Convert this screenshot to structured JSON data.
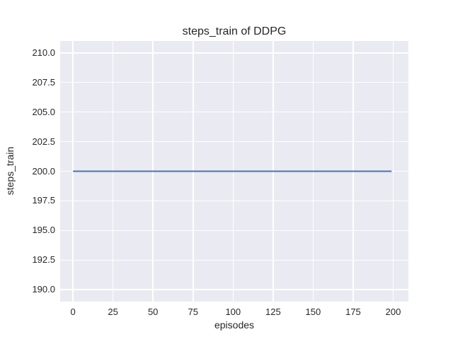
{
  "chart_data": {
    "type": "line",
    "title": "steps_train of DDPG",
    "xlabel": "episodes",
    "ylabel": "steps_train",
    "xlim": [
      -8,
      209.5
    ],
    "ylim": [
      189,
      211
    ],
    "xticks": [
      {
        "value": 0,
        "label": "0"
      },
      {
        "value": 25,
        "label": "25"
      },
      {
        "value": 50,
        "label": "50"
      },
      {
        "value": 75,
        "label": "75"
      },
      {
        "value": 100,
        "label": "100"
      },
      {
        "value": 125,
        "label": "125"
      },
      {
        "value": 150,
        "label": "150"
      },
      {
        "value": 175,
        "label": "175"
      },
      {
        "value": 200,
        "label": "200"
      }
    ],
    "yticks": [
      {
        "value": 190,
        "label": "190.0"
      },
      {
        "value": 192.5,
        "label": "192.5"
      },
      {
        "value": 195,
        "label": "195.0"
      },
      {
        "value": 197.5,
        "label": "197.5"
      },
      {
        "value": 200,
        "label": "200.0"
      },
      {
        "value": 202.5,
        "label": "202.5"
      },
      {
        "value": 205,
        "label": "205.0"
      },
      {
        "value": 207.5,
        "label": "207.5"
      },
      {
        "value": 210,
        "label": "210.0"
      }
    ],
    "grid": true,
    "legend": false,
    "colors": {
      "figure_background": "#ffffff",
      "plot_background": "#eaeaf2",
      "grid": "#ffffff",
      "text": "#262626"
    },
    "series": [
      {
        "name": "steps_train",
        "color": "#4c72b0",
        "line_width": 2,
        "x": [
          0,
          199
        ],
        "y": [
          200,
          200
        ]
      }
    ]
  }
}
